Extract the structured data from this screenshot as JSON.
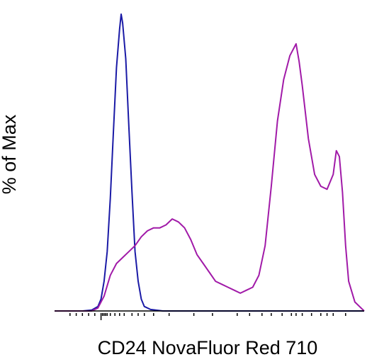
{
  "chart_data": {
    "type": "line",
    "title": "",
    "xlabel": "CD24 NovaFluor Red 710",
    "ylabel": "% of Max",
    "x_scale": "log (biexponential)",
    "x_ticks_labeled": false,
    "ylim": [
      0,
      100
    ],
    "grid": false,
    "legend": "none",
    "series": [
      {
        "color": "#1a1aa6",
        "points": [
          [
            0.0,
            0
          ],
          [
            0.09,
            0
          ],
          [
            0.12,
            0.3
          ],
          [
            0.14,
            1.5
          ],
          [
            0.15,
            4
          ],
          [
            0.16,
            10
          ],
          [
            0.17,
            20
          ],
          [
            0.18,
            38
          ],
          [
            0.19,
            60
          ],
          [
            0.2,
            82
          ],
          [
            0.21,
            95
          ],
          [
            0.215,
            100
          ],
          [
            0.22,
            97
          ],
          [
            0.23,
            85
          ],
          [
            0.24,
            62
          ],
          [
            0.25,
            40
          ],
          [
            0.26,
            20
          ],
          [
            0.27,
            10
          ],
          [
            0.28,
            4
          ],
          [
            0.29,
            1.5
          ],
          [
            0.31,
            0.5
          ],
          [
            0.35,
            0
          ],
          [
            1.0,
            0
          ]
        ]
      },
      {
        "color": "#a11aa8",
        "points": [
          [
            0.0,
            0
          ],
          [
            0.12,
            0
          ],
          [
            0.14,
            1
          ],
          [
            0.16,
            5
          ],
          [
            0.18,
            12
          ],
          [
            0.2,
            16
          ],
          [
            0.22,
            18
          ],
          [
            0.24,
            20
          ],
          [
            0.26,
            22
          ],
          [
            0.28,
            25
          ],
          [
            0.3,
            27
          ],
          [
            0.32,
            28
          ],
          [
            0.34,
            28
          ],
          [
            0.36,
            29
          ],
          [
            0.38,
            31
          ],
          [
            0.4,
            30
          ],
          [
            0.42,
            28
          ],
          [
            0.44,
            24
          ],
          [
            0.46,
            19
          ],
          [
            0.48,
            16
          ],
          [
            0.5,
            13
          ],
          [
            0.52,
            10
          ],
          [
            0.54,
            9
          ],
          [
            0.56,
            8
          ],
          [
            0.58,
            7
          ],
          [
            0.6,
            6
          ],
          [
            0.62,
            7
          ],
          [
            0.64,
            8
          ],
          [
            0.66,
            12
          ],
          [
            0.68,
            22
          ],
          [
            0.7,
            42
          ],
          [
            0.72,
            64
          ],
          [
            0.74,
            78
          ],
          [
            0.76,
            86
          ],
          [
            0.78,
            90
          ],
          [
            0.79,
            84
          ],
          [
            0.8,
            76
          ],
          [
            0.82,
            58
          ],
          [
            0.84,
            46
          ],
          [
            0.86,
            42
          ],
          [
            0.88,
            41
          ],
          [
            0.9,
            46
          ],
          [
            0.91,
            54
          ],
          [
            0.92,
            52
          ],
          [
            0.93,
            40
          ],
          [
            0.94,
            22
          ],
          [
            0.95,
            10
          ],
          [
            0.97,
            3
          ],
          [
            0.99,
            1
          ],
          [
            1.0,
            0
          ]
        ]
      }
    ]
  }
}
